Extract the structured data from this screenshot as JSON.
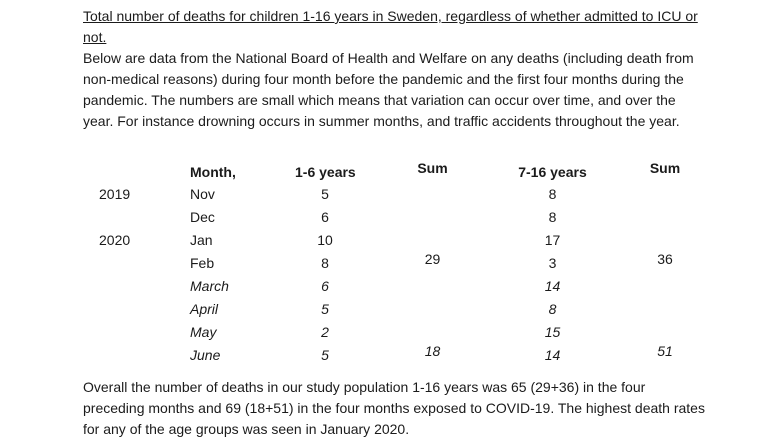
{
  "page": {
    "background": "#ffffff",
    "text_color": "#1b1b1b"
  },
  "title": {
    "lines": [
      "Total number of deaths for children 1-16 years in Sweden, regardless of whether admitted to ICU or",
      "not."
    ]
  },
  "intro": {
    "lines": [
      "Below are data from the National Board of Health and Welfare on any deaths (including death from",
      "non-medical reasons) during four month before the pandemic and the first four months during the",
      "pandemic. The numbers are small which means that variation can occur over time, and over the",
      "year. For instance drowning occurs in summer months, and traffic accidents throughout the year."
    ]
  },
  "table": {
    "headers": {
      "year": "",
      "month": "Month,",
      "age_1_6": "1-6 years",
      "sum_1_6": "Sum",
      "age_7_16": "7-16 years",
      "sum_7_16": "Sum"
    },
    "rows": [
      {
        "year": "2019",
        "month": "Nov",
        "age_1_6": "5",
        "sum_1_6": "",
        "age_7_16": "8",
        "sum_7_16": ""
      },
      {
        "year": "",
        "month": "Dec",
        "age_1_6": "6",
        "sum_1_6": "",
        "age_7_16": "8",
        "sum_7_16": ""
      },
      {
        "year": "2020",
        "month": "Jan",
        "age_1_6": "10",
        "sum_1_6": "",
        "age_7_16": "17",
        "sum_7_16": ""
      },
      {
        "year": "",
        "month": "Feb",
        "age_1_6": "8",
        "sum_1_6": "29",
        "age_7_16": "3",
        "sum_7_16": "36"
      },
      {
        "year": "",
        "month": "March",
        "age_1_6": "6",
        "sum_1_6": "",
        "age_7_16": "14",
        "sum_7_16": ""
      },
      {
        "year": "",
        "month": "April",
        "age_1_6": "5",
        "sum_1_6": "",
        "age_7_16": "8",
        "sum_7_16": ""
      },
      {
        "year": "",
        "month": "May",
        "age_1_6": "2",
        "sum_1_6": "",
        "age_7_16": "15",
        "sum_7_16": ""
      },
      {
        "year": "",
        "month": "June",
        "age_1_6": "5",
        "sum_1_6": "18",
        "age_7_16": "14",
        "sum_7_16": "51"
      }
    ]
  },
  "summary": {
    "lines": [
      "Overall the number of deaths in our study population 1-16 years was 65 (29+36) in the four",
      "preceding months and 69 (18+51) in the four months exposed to COVID-19. The highest death rates",
      "for any of the age groups was seen in January 2020."
    ]
  }
}
